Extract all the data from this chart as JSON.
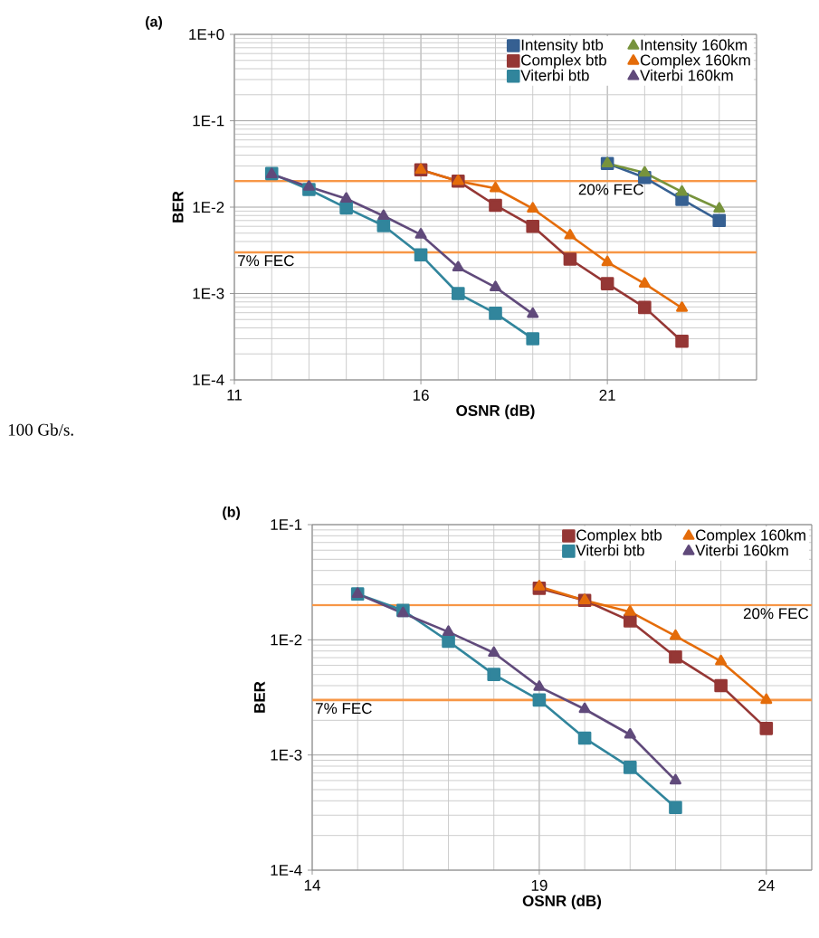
{
  "chart_data": [
    {
      "type": "line",
      "title": "(a)",
      "xlabel": "OSNR (dB)",
      "ylabel": "BER",
      "log": "y",
      "grid": true,
      "legend": "top right",
      "line_style": "solid",
      "xlim": [
        11,
        25
      ],
      "xticks": [
        11,
        16,
        21
      ],
      "ylim": [
        0.0001,
        1
      ],
      "yticks": [
        {
          "value": 0.0001,
          "label": "1E-4"
        },
        {
          "value": 0.001,
          "label": "1E-3"
        },
        {
          "value": 0.01,
          "label": "1E-2"
        },
        {
          "value": 0.1,
          "label": "1E-1"
        },
        {
          "value": 1,
          "label": "1E+0"
        }
      ],
      "ref_lines": [
        {
          "axis": "y",
          "value": 0.02,
          "label": "20% FEC",
          "color": "#f79646"
        },
        {
          "axis": "y",
          "value": 0.003,
          "label": "7% FEC",
          "color": "#f79646"
        }
      ],
      "annotations": [
        "100 Gb/s."
      ],
      "series": [
        {
          "name": "Intensity btb",
          "color": "#366092",
          "marker": "square",
          "x": [
            21,
            22,
            23,
            24
          ],
          "values": [
            0.032,
            0.022,
            0.0123,
            0.007
          ]
        },
        {
          "name": "Intensity 160km",
          "color": "#77933c",
          "marker": "triangle",
          "x": [
            21,
            22,
            23,
            24
          ],
          "values": [
            0.032,
            0.025,
            0.015,
            0.0096
          ]
        },
        {
          "name": "Complex btb",
          "color": "#953735",
          "marker": "square",
          "x": [
            16,
            17,
            18,
            19,
            20,
            21,
            22,
            23
          ],
          "values": [
            0.027,
            0.02,
            0.0105,
            0.006,
            0.0025,
            0.0013,
            0.00069,
            0.00028
          ]
        },
        {
          "name": "Complex 160km",
          "color": "#e46c0a",
          "marker": "triangle",
          "x": [
            16,
            17,
            18,
            19,
            20,
            21,
            22,
            23
          ],
          "values": [
            0.027,
            0.02,
            0.0165,
            0.0096,
            0.0047,
            0.0023,
            0.0013,
            0.00068
          ]
        },
        {
          "name": "Viterbi btb",
          "color": "#31859c",
          "marker": "square",
          "x": [
            12,
            13,
            14,
            15,
            16,
            17,
            18,
            19
          ],
          "values": [
            0.0245,
            0.016,
            0.0098,
            0.0061,
            0.0028,
            0.001,
            0.00059,
            0.0003
          ]
        },
        {
          "name": "Viterbi 160km",
          "color": "#604a7b",
          "marker": "triangle",
          "x": [
            12,
            13,
            14,
            15,
            16,
            17,
            18,
            19
          ],
          "values": [
            0.024,
            0.0172,
            0.0125,
            0.0079,
            0.0048,
            0.002,
            0.00118,
            0.00058
          ]
        }
      ]
    },
    {
      "type": "line",
      "title": "(b)",
      "xlabel": "OSNR (dB)",
      "ylabel": "BER",
      "log": "y",
      "grid": true,
      "legend": "top right",
      "line_style": "solid",
      "xlim": [
        14,
        25
      ],
      "xticks": [
        14,
        19,
        24
      ],
      "ylim": [
        0.0001,
        0.1
      ],
      "yticks": [
        {
          "value": 0.0001,
          "label": "1E-4"
        },
        {
          "value": 0.001,
          "label": "1E-3"
        },
        {
          "value": 0.01,
          "label": "1E-2"
        },
        {
          "value": 0.1,
          "label": "1E-1"
        }
      ],
      "ref_lines": [
        {
          "axis": "y",
          "value": 0.02,
          "label": "20% FEC",
          "color": "#f79646"
        },
        {
          "axis": "y",
          "value": 0.003,
          "label": "7% FEC",
          "color": "#f79646"
        }
      ],
      "series": [
        {
          "name": "Complex btb",
          "color": "#953735",
          "marker": "square",
          "x": [
            19,
            20,
            21,
            22,
            23,
            24
          ],
          "values": [
            0.028,
            0.022,
            0.0146,
            0.0071,
            0.004,
            0.0017
          ]
        },
        {
          "name": "Complex 160km",
          "color": "#e46c0a",
          "marker": "triangle",
          "x": [
            19,
            20,
            21,
            22,
            23,
            24
          ],
          "values": [
            0.029,
            0.022,
            0.0175,
            0.0108,
            0.0065,
            0.003
          ]
        },
        {
          "name": "Viterbi btb",
          "color": "#31859c",
          "marker": "square",
          "x": [
            15,
            16,
            17,
            18,
            19,
            20,
            21,
            22
          ],
          "values": [
            0.025,
            0.018,
            0.0097,
            0.005,
            0.003,
            0.0014,
            0.00078,
            0.00035
          ]
        },
        {
          "name": "Viterbi 160km",
          "color": "#604a7b",
          "marker": "triangle",
          "x": [
            15,
            16,
            17,
            18,
            19,
            20,
            21,
            22
          ],
          "values": [
            0.025,
            0.017,
            0.0117,
            0.0077,
            0.0039,
            0.0025,
            0.0015,
            0.0006
          ]
        }
      ]
    }
  ]
}
